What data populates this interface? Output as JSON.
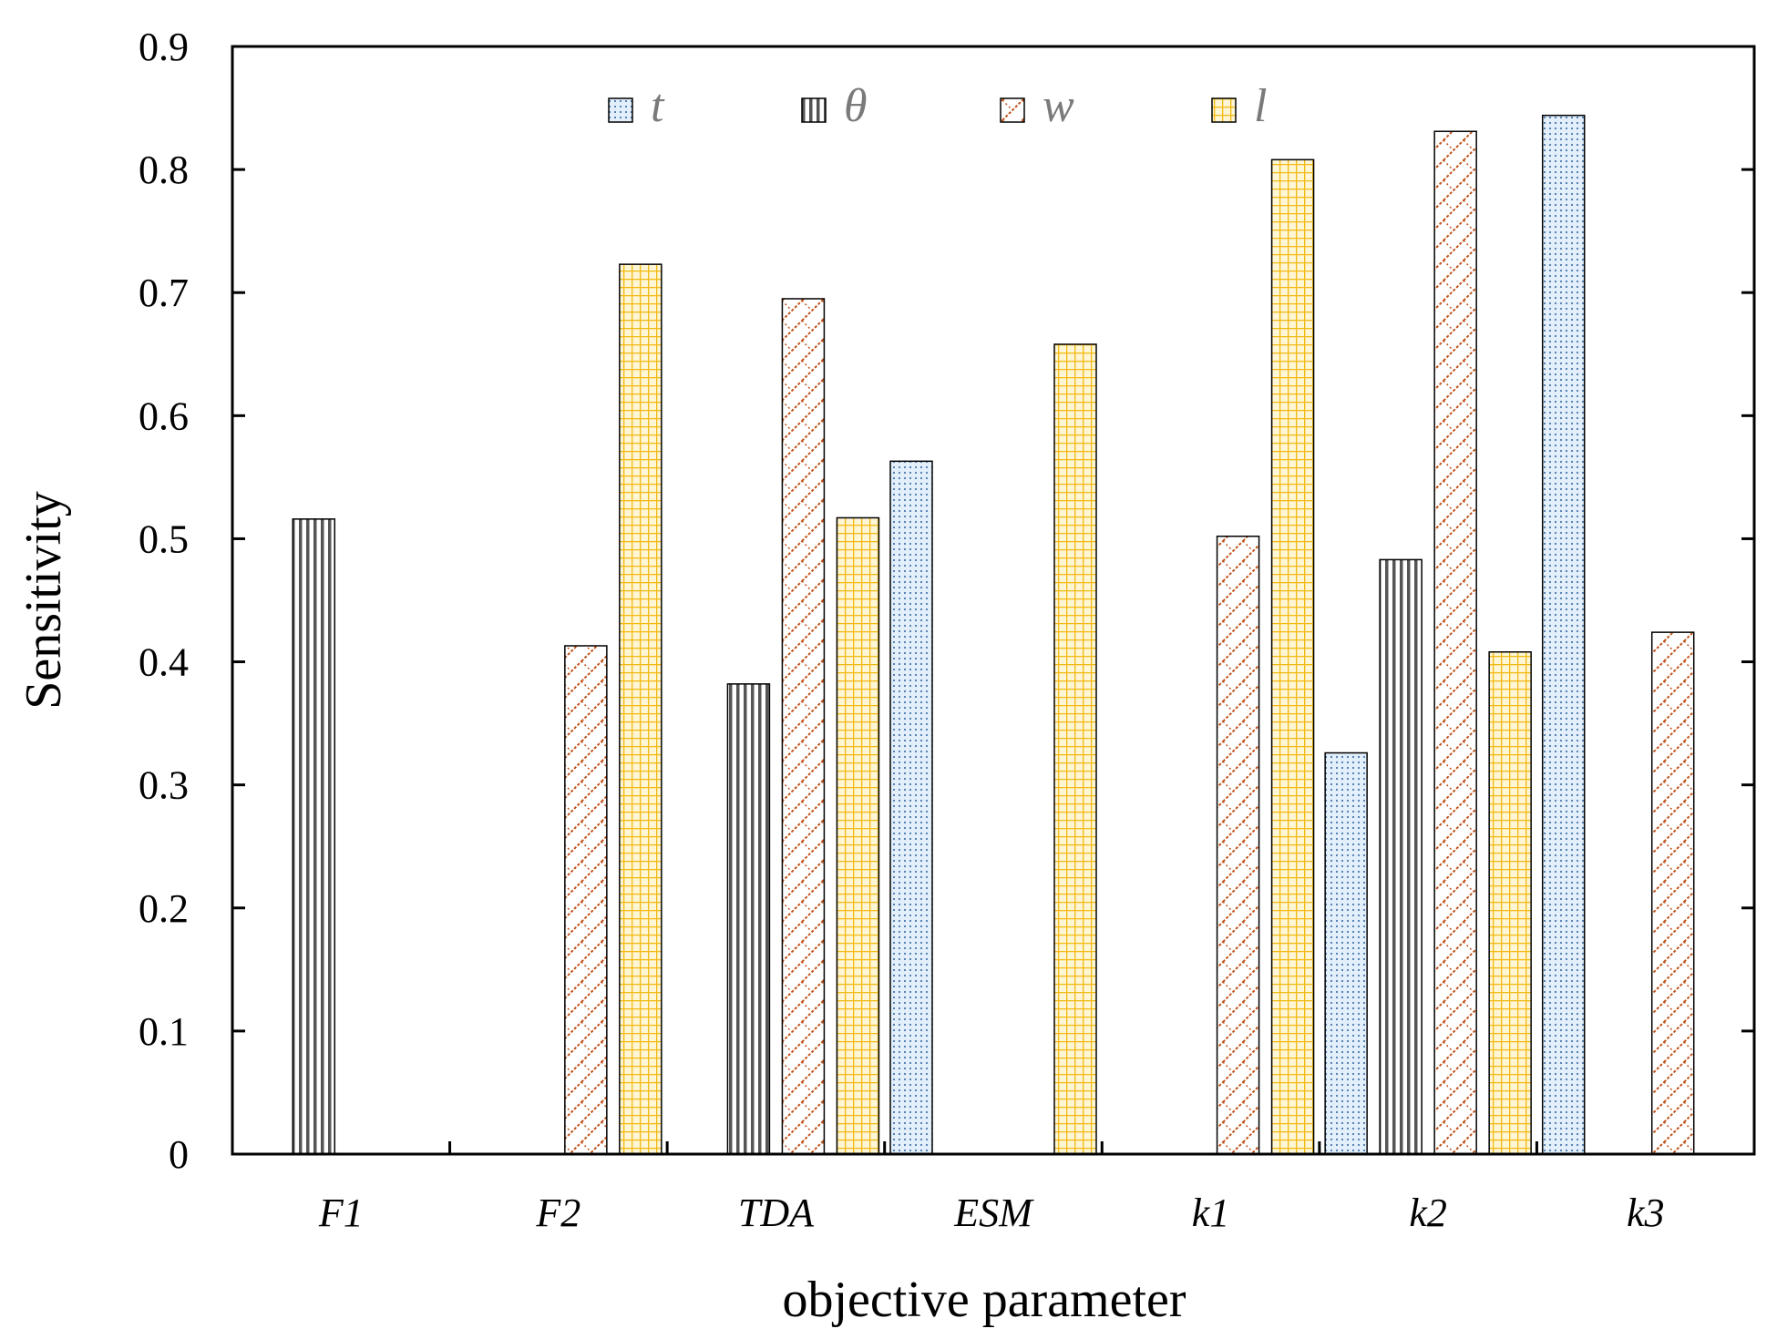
{
  "chart_data": {
    "type": "bar",
    "title": "",
    "xlabel": "objective parameter",
    "ylabel": "Sensitivity",
    "ylim": [
      0,
      0.9
    ],
    "yticks": [
      "0",
      "0.1",
      "0.2",
      "0.3",
      "0.4",
      "0.5",
      "0.6",
      "0.7",
      "0.8",
      "0.9"
    ],
    "ytick_values": [
      0,
      0.1,
      0.2,
      0.3,
      0.4,
      0.5,
      0.6,
      0.7,
      0.8,
      0.9
    ],
    "categories": [
      "F1",
      "F2",
      "TDA",
      "ESM",
      "k1",
      "k2",
      "k3"
    ],
    "legend_position": "top-center",
    "series": [
      {
        "name": "t",
        "values": [
          0,
          0,
          0,
          0.563,
          0,
          0.326,
          0.844
        ],
        "color": "#4a78b0",
        "fill": "#e3effa",
        "pattern": "dots"
      },
      {
        "name": "θ",
        "values": [
          0.516,
          0,
          0.382,
          0,
          0,
          0.483,
          0
        ],
        "color": "#555555",
        "fill": "#ffffff",
        "pattern": "vertical-lines"
      },
      {
        "name": "w",
        "values": [
          0,
          0.413,
          0.695,
          0,
          0.502,
          0.831,
          0.424
        ],
        "color": "#c0521a",
        "fill": "#ffffff",
        "pattern": "zigzag"
      },
      {
        "name": "l",
        "values": [
          0,
          0.723,
          0.517,
          0.658,
          0.808,
          0.408,
          0
        ],
        "color": "#f2b90f",
        "fill": "#fff6d6",
        "pattern": "grid"
      }
    ]
  }
}
